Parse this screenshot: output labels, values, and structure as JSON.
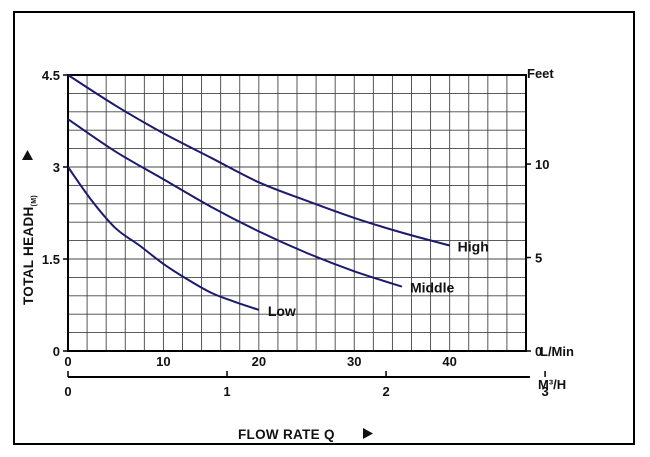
{
  "chart_data": {
    "type": "line",
    "xlabel": "FLOW RATE Q",
    "ylabel": "TOTAL HEADH",
    "ylabel_sub": "(M)",
    "x_unit_primary": "L/Min",
    "x_unit_secondary": "M³/H",
    "y_unit_right": "Feet",
    "xlim": [
      0,
      48
    ],
    "ylim": [
      0,
      4.5
    ],
    "x_ticks_primary": [
      0,
      10,
      20,
      30,
      40
    ],
    "x_ticks_secondary": [
      0,
      1,
      2,
      3
    ],
    "y_ticks_left": [
      0,
      1.5,
      3,
      4.5
    ],
    "y_ticks_right": [
      0,
      5,
      10
    ],
    "grid": true,
    "series": [
      {
        "name": "High",
        "x": [
          0,
          5,
          10,
          15,
          20,
          25,
          30,
          35,
          40
        ],
        "y": [
          4.5,
          4.0,
          3.55,
          3.15,
          2.75,
          2.45,
          2.17,
          1.93,
          1.72
        ]
      },
      {
        "name": "Middle",
        "x": [
          0,
          5,
          10,
          15,
          20,
          25,
          30,
          35
        ],
        "y": [
          3.78,
          3.25,
          2.8,
          2.35,
          1.95,
          1.6,
          1.3,
          1.05
        ]
      },
      {
        "name": "Low",
        "x": [
          0,
          2.5,
          5,
          7.5,
          10,
          12.5,
          15,
          17.5,
          20
        ],
        "y": [
          3.0,
          2.45,
          2.0,
          1.72,
          1.42,
          1.17,
          0.95,
          0.8,
          0.67
        ]
      }
    ]
  }
}
